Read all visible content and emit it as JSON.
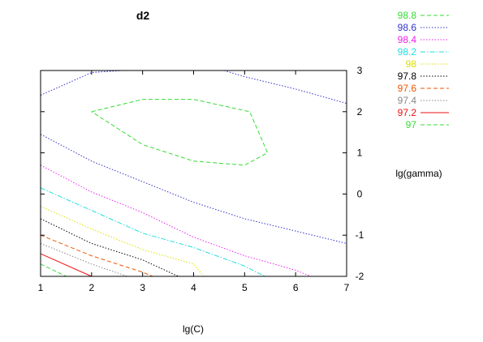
{
  "chart_data": {
    "type": "line",
    "subtype": "contour",
    "title": "d2",
    "xlabel": "lg(C)",
    "ylabel": "lg(gamma)",
    "xlim": [
      1,
      7
    ],
    "ylim": [
      -2,
      3
    ],
    "xticks": [
      1,
      2,
      3,
      4,
      5,
      6,
      7
    ],
    "yticks": [
      -2,
      -1,
      0,
      1,
      2,
      3
    ],
    "grid": false,
    "legend_position": "right",
    "series": [
      {
        "name": "98.8",
        "color": "#33dd33",
        "dash": "dashed",
        "paths": [
          [
            [
              2,
              2.0
            ],
            [
              3,
              2.3
            ],
            [
              4,
              2.3
            ],
            [
              5.1,
              2.0
            ],
            [
              5.45,
              1.0
            ],
            [
              5.0,
              0.7
            ],
            [
              4,
              0.8
            ],
            [
              3,
              1.2
            ],
            [
              2,
              2.0
            ]
          ]
        ]
      },
      {
        "name": "98.6",
        "color": "#3333cc",
        "dash": "dotted",
        "paths": [
          [
            [
              1,
              2.4
            ],
            [
              2,
              2.95
            ],
            [
              2.6,
              3.0
            ]
          ],
          [
            [
              4.6,
              3.0
            ],
            [
              5,
              2.85
            ],
            [
              6,
              2.55
            ],
            [
              7,
              2.2
            ]
          ],
          [
            [
              1,
              1.45
            ],
            [
              2,
              0.8
            ],
            [
              3,
              0.3
            ],
            [
              4,
              -0.2
            ],
            [
              5,
              -0.6
            ],
            [
              6,
              -0.9
            ],
            [
              7,
              -1.2
            ]
          ]
        ]
      },
      {
        "name": "98.4",
        "color": "#ee22ee",
        "dash": "dotted",
        "paths": [
          [
            [
              1,
              0.7
            ],
            [
              2,
              0.05
            ],
            [
              3,
              -0.45
            ],
            [
              4,
              -1.05
            ],
            [
              5,
              -1.5
            ],
            [
              6,
              -1.85
            ],
            [
              6.3,
              -2.0
            ]
          ]
        ]
      },
      {
        "name": "98.2",
        "color": "#22dddd",
        "dash": "dashdot",
        "paths": [
          [
            [
              1,
              0.15
            ],
            [
              2,
              -0.4
            ],
            [
              3,
              -0.95
            ],
            [
              4,
              -1.3
            ],
            [
              5,
              -1.75
            ],
            [
              5.4,
              -2.0
            ]
          ]
        ]
      },
      {
        "name": "98",
        "color": "#dddd00",
        "dash": "dotted",
        "paths": [
          [
            [
              1,
              -0.3
            ],
            [
              2,
              -0.85
            ],
            [
              3,
              -1.35
            ],
            [
              4,
              -1.7
            ],
            [
              4.2,
              -2.0
            ]
          ]
        ]
      },
      {
        "name": "97.8",
        "color": "#000000",
        "dash": "dotted",
        "paths": [
          [
            [
              1,
              -0.6
            ],
            [
              2,
              -1.2
            ],
            [
              3,
              -1.6
            ],
            [
              3.7,
              -2.0
            ]
          ]
        ]
      },
      {
        "name": "97.6",
        "color": "#ee5500",
        "dash": "dashed",
        "paths": [
          [
            [
              1,
              -1.0
            ],
            [
              2,
              -1.5
            ],
            [
              3,
              -1.9
            ],
            [
              3.2,
              -2.0
            ]
          ]
        ]
      },
      {
        "name": "97.4",
        "color": "#888888",
        "dash": "dotted",
        "paths": [
          [
            [
              1,
              -1.2
            ],
            [
              2,
              -1.7
            ],
            [
              2.7,
              -2.0
            ]
          ]
        ]
      },
      {
        "name": "97.2",
        "color": "#ee1111",
        "dash": "solid",
        "paths": [
          [
            [
              1,
              -1.45
            ],
            [
              2,
              -2.0
            ]
          ]
        ]
      },
      {
        "name": "97",
        "color": "#33dd33",
        "dash": "dashed",
        "paths": [
          [
            [
              1,
              -1.7
            ],
            [
              1.5,
              -2.0
            ]
          ]
        ]
      }
    ]
  }
}
